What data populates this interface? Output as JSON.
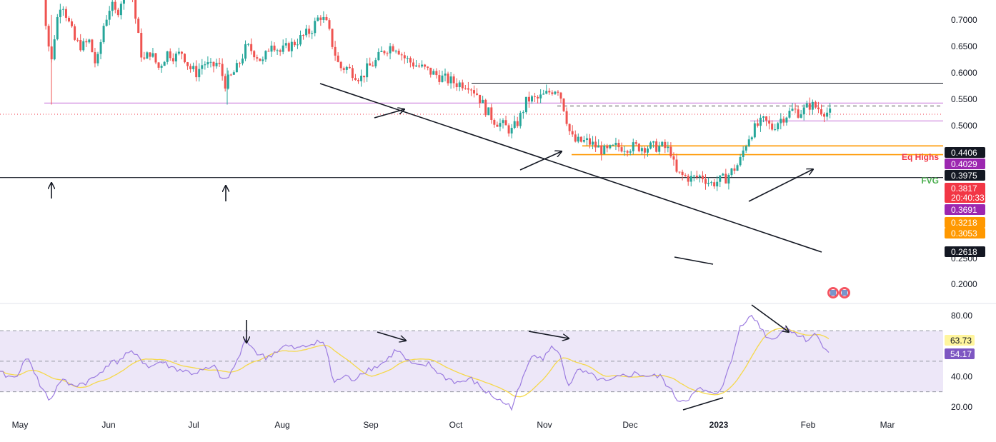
{
  "colors": {
    "up": "#26a69a",
    "down": "#ef5350",
    "rsi": "#9c7ce0",
    "rsi_ma": "#f5d84a",
    "rsi_band": "#ede7f8",
    "purple_level": "#d18ee0",
    "orange_level": "#ff9800",
    "black_level": "#131722",
    "eq_highs": "#f23645",
    "fvg": "#4caf50"
  },
  "chart_data": {
    "type": "candlestick",
    "price_axis": {
      "ticks": [
        "0.7000",
        "0.6500",
        "0.6000",
        "0.5500",
        "0.5000",
        "0.2500",
        "0.2000"
      ],
      "ylim": [
        0.17,
        0.73
      ]
    },
    "time_axis": {
      "months": [
        "May",
        "Jun",
        "Jul",
        "Aug",
        "Sep",
        "Oct",
        "Nov",
        "Dec",
        "2023",
        "Feb",
        "Mar"
      ]
    },
    "annotations": {
      "eq_highs_label": "Eq Highs",
      "fvg_label": "FVG"
    },
    "price_tags": [
      {
        "value": "0.4406",
        "bg": "#131722"
      },
      {
        "value": "0.4029",
        "bg": "#9c27b0"
      },
      {
        "value": "0.3975",
        "bg": "#131722"
      },
      {
        "value": "0.3817",
        "bg": "#f23645"
      },
      {
        "value": "20:40:33",
        "bg": "#f23645"
      },
      {
        "value": "0.3691",
        "bg": "#9c27b0"
      },
      {
        "value": "0.3218",
        "bg": "#ff9800"
      },
      {
        "value": "0.3053",
        "bg": "#ff9800"
      },
      {
        "value": "0.2618",
        "bg": "#131722"
      }
    ],
    "levels": [
      {
        "price": 0.4406,
        "kind": "eq-highs"
      },
      {
        "price": 0.3975,
        "kind": "fvg-dashed"
      },
      {
        "price": 0.4029,
        "kind": "purple"
      },
      {
        "price": 0.3691,
        "kind": "purple"
      },
      {
        "price": 0.3218,
        "kind": "orange"
      },
      {
        "price": 0.3053,
        "kind": "orange"
      },
      {
        "price": 0.2618,
        "kind": "black"
      }
    ],
    "rsi_panel": {
      "ticks": [
        "80.00",
        "40.00",
        "20.00"
      ],
      "ylim": [
        15,
        85
      ],
      "upper_band": 70,
      "mid_band": 50,
      "lower_band": 30,
      "values": {
        "rsi": "54.17",
        "rsi_ma": "63.73"
      }
    }
  }
}
